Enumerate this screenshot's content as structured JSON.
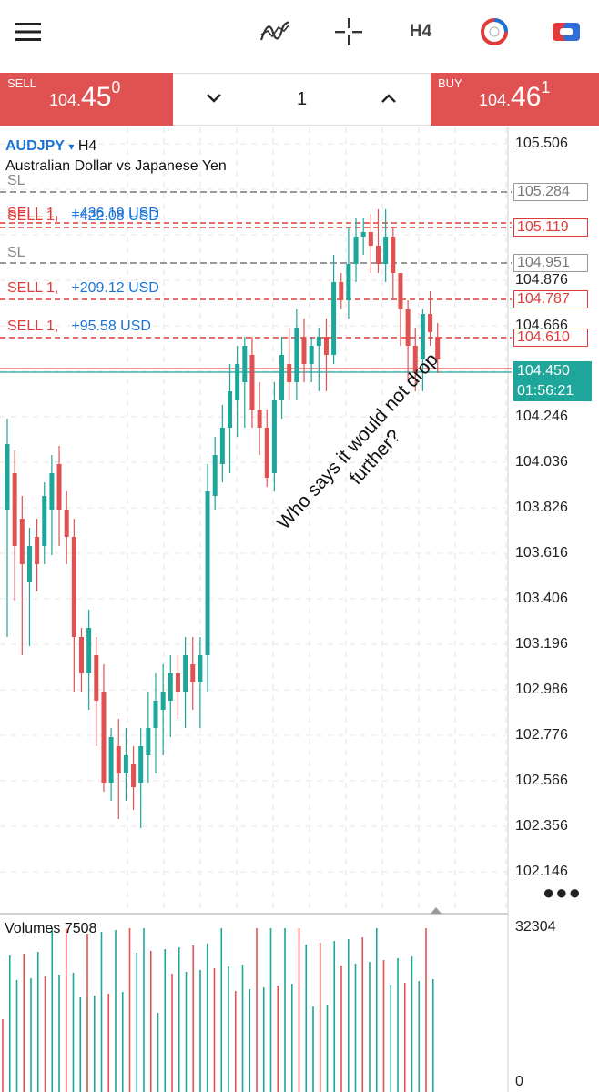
{
  "toolbar": {
    "menu_icon": "hamburger-menu-icon",
    "indicators_icon": "indicator-curve-icon",
    "crosshair_icon": "crosshair-icon",
    "timeframe": "H4",
    "trade_icon": "trade-circle-icon",
    "chart_type_icon": "chart-toggle-icon"
  },
  "trade": {
    "sell_label": "SELL",
    "sell_price_small": "104.",
    "sell_price_big": "45",
    "sell_price_sup": "0",
    "buy_label": "BUY",
    "buy_price_small": "104.",
    "buy_price_big": "46",
    "buy_price_sup": "1",
    "lot": "1",
    "decrease_icon": "chevron-down-icon",
    "increase_icon": "chevron-up-icon",
    "colors": {
      "sell": "#e05252",
      "buy": "#e05252"
    }
  },
  "chart": {
    "symbol": "AUDJPY",
    "symbol_arrow": "▾",
    "timeframe": "H4",
    "description": "Australian Dollar vs Japanese Yen",
    "price_scale": [
      "105.506",
      "104.876",
      "104.666",
      "104.246",
      "104.036",
      "103.826",
      "103.616",
      "103.406",
      "103.196",
      "102.986",
      "102.776",
      "102.566",
      "102.356",
      "102.146"
    ],
    "level_boxes": {
      "sl_top": "105.284",
      "order_1": "105.119",
      "sl_second": "104.951",
      "order_2": "104.787",
      "order_3": "104.610"
    },
    "current_price": "104.450",
    "countdown": "01:56:21",
    "orders": [
      {
        "side": "SELL 1,",
        "profit": "+436.19 USD"
      },
      {
        "side": "SELL 1,",
        "profit": "+422.08 USD"
      },
      {
        "side": "SELL 1,",
        "profit": "+209.12 USD"
      },
      {
        "side": "SELL 1,",
        "profit": "+95.58 USD"
      }
    ],
    "sl_label": "SL",
    "annotation_line1": "Who says it would not drop",
    "annotation_line2": "further?",
    "more_icon": "more-dots-icon",
    "colors": {
      "bull": "#1ea69a",
      "bear": "#e05252",
      "order": "#e03b3b",
      "sl": "#999999",
      "profit": "#1a73d6"
    }
  },
  "volumes": {
    "title": "Volumes 7508",
    "max": "32304",
    "min": "0"
  }
}
